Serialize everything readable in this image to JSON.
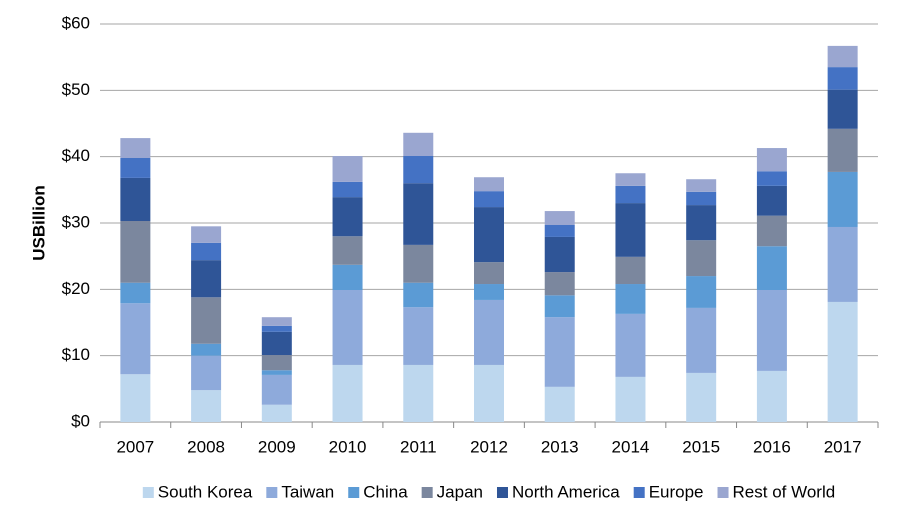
{
  "chart_data": {
    "type": "stacked_bar",
    "y_label": "USBillion",
    "categories": [
      "2007",
      "2008",
      "2009",
      "2010",
      "2011",
      "2012",
      "2013",
      "2014",
      "2015",
      "2016",
      "2017"
    ],
    "series": [
      {
        "name": "South Korea",
        "color": "#bdd7ee",
        "values": [
          7.2,
          4.8,
          2.6,
          8.6,
          8.6,
          8.6,
          5.3,
          6.8,
          7.4,
          7.7,
          18.1
        ]
      },
      {
        "name": "Taiwan",
        "color": "#8eaadb",
        "values": [
          10.7,
          5.2,
          4.5,
          11.3,
          8.7,
          9.8,
          10.5,
          9.5,
          9.8,
          12.2,
          11.3
        ]
      },
      {
        "name": "China",
        "color": "#5b9bd5",
        "values": [
          3.1,
          1.8,
          0.7,
          3.8,
          3.7,
          2.4,
          3.3,
          4.5,
          4.8,
          6.6,
          8.3
        ]
      },
      {
        "name": "Japan",
        "color": "#7b879e",
        "values": [
          9.3,
          7.0,
          2.3,
          4.3,
          5.7,
          3.3,
          3.5,
          4.1,
          5.4,
          4.6,
          6.5
        ]
      },
      {
        "name": "North America",
        "color": "#2f5597",
        "values": [
          6.5,
          5.6,
          3.5,
          5.9,
          9.3,
          8.3,
          5.3,
          8.1,
          5.3,
          4.5,
          5.9
        ]
      },
      {
        "name": "Europe",
        "color": "#4472c4",
        "values": [
          3.0,
          2.6,
          0.9,
          2.3,
          4.1,
          2.4,
          1.8,
          2.6,
          2.0,
          2.2,
          3.4
        ]
      },
      {
        "name": "Rest of World",
        "color": "#9aa6d0",
        "values": [
          3.0,
          2.5,
          1.3,
          3.9,
          3.5,
          2.1,
          2.1,
          1.9,
          1.9,
          3.5,
          3.2
        ]
      }
    ],
    "ylim": [
      0,
      60
    ],
    "yticks": [
      {
        "value": 0,
        "label": "$0"
      },
      {
        "value": 10,
        "label": "$10"
      },
      {
        "value": 20,
        "label": "$20"
      },
      {
        "value": 30,
        "label": "$30"
      },
      {
        "value": 40,
        "label": "$40"
      },
      {
        "value": 50,
        "label": "$50"
      },
      {
        "value": 60,
        "label": "$60"
      }
    ],
    "grid": true,
    "legend": "bottom"
  }
}
